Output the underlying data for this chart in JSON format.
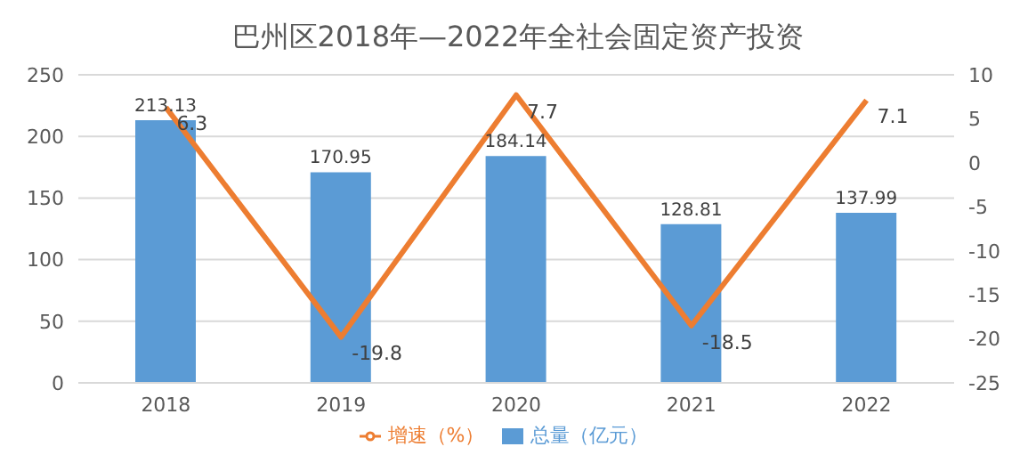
{
  "chart_data": {
    "type": "bar",
    "title": "巴州区2018年—2022年全社会固定资产投资",
    "categories": [
      "2018",
      "2019",
      "2020",
      "2021",
      "2022"
    ],
    "series": [
      {
        "name": "总量（亿元）",
        "color": "#5b9bd5",
        "values": [
          213.13,
          170.95,
          184.14,
          128.81,
          137.99
        ]
      },
      {
        "name": "增速（%）",
        "type": "line",
        "axis": "y2",
        "color": "#ed7d31",
        "values": [
          6.3,
          -19.8,
          7.7,
          -18.5,
          7.1
        ]
      }
    ],
    "ylim": [
      0,
      250
    ],
    "yticks": [
      0,
      50,
      100,
      150,
      200,
      250
    ],
    "y2lim": [
      -25,
      10
    ],
    "y2ticks": [
      -25,
      -20,
      -15,
      -10,
      -5,
      0,
      5,
      10
    ],
    "grid": "y",
    "legend": "bottom",
    "data_labels": true,
    "marker": "none"
  }
}
